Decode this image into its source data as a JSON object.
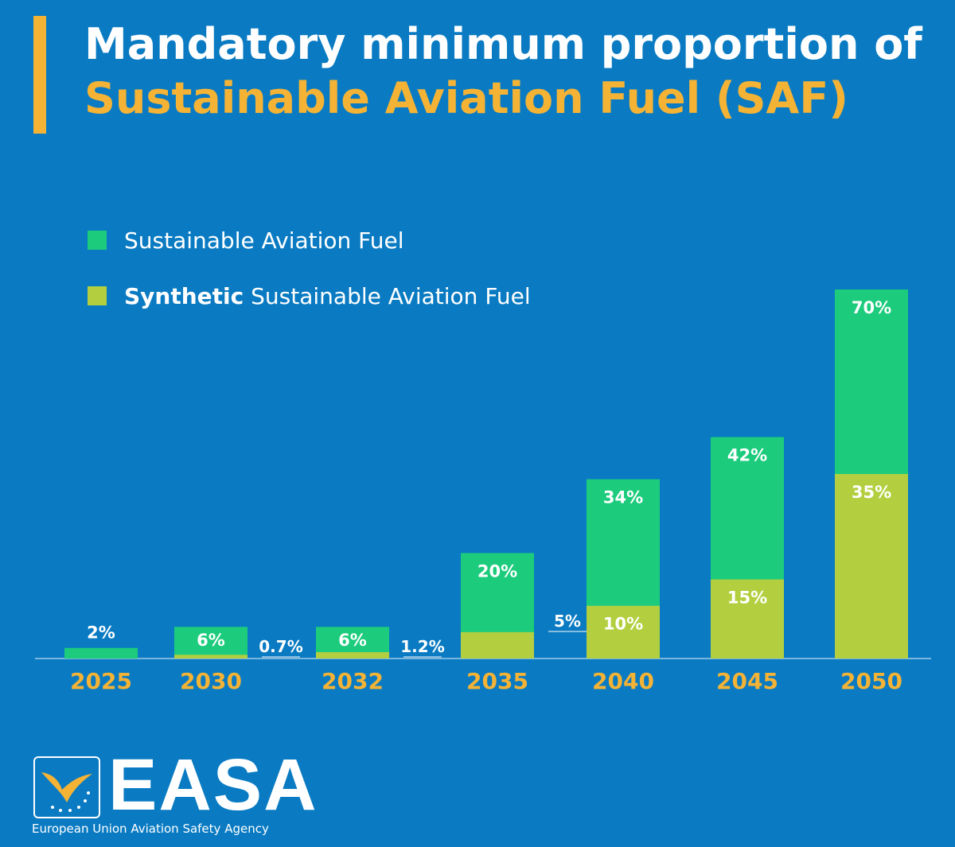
{
  "header": {
    "title_line1": "Mandatory minimum proportion of",
    "title_line2": "Sustainable Aviation Fuel (SAF)"
  },
  "colors": {
    "background": "#0a7bc2",
    "accent": "#f5b335",
    "saf": "#1ccc7c",
    "synthetic": "#b3cf3f",
    "text": "#ffffff"
  },
  "chart_data": {
    "type": "bar",
    "title": "Mandatory minimum proportion of Sustainable Aviation Fuel (SAF)",
    "categories": [
      "2025",
      "2030",
      "2032",
      "2035",
      "2040",
      "2045",
      "2050"
    ],
    "series": [
      {
        "name": "Sustainable Aviation Fuel",
        "values": [
          2,
          6,
          6,
          20,
          34,
          42,
          70
        ],
        "labels": [
          "2%",
          "6%",
          "6%",
          "20%",
          "34%",
          "42%",
          "70%"
        ]
      },
      {
        "name": "Synthetic Sustainable Aviation Fuel",
        "values": [
          0,
          0.7,
          1.2,
          5,
          10,
          15,
          35
        ],
        "labels": [
          "",
          "0.7%",
          "1.2%",
          "5%",
          "10%",
          "15%",
          "35%"
        ]
      }
    ],
    "legend": [
      {
        "bold": "",
        "text": "Sustainable Aviation Fuel",
        "series": 0
      },
      {
        "bold": "Synthetic",
        "text": " Sustainable Aviation Fuel",
        "series": 1
      }
    ],
    "ylim": [
      0,
      70
    ],
    "xlabel": "",
    "ylabel": "",
    "grid": false,
    "legend_position": "top-left"
  },
  "logo": {
    "word": "EASA",
    "subtitle": "European Union Aviation Safety Agency"
  }
}
